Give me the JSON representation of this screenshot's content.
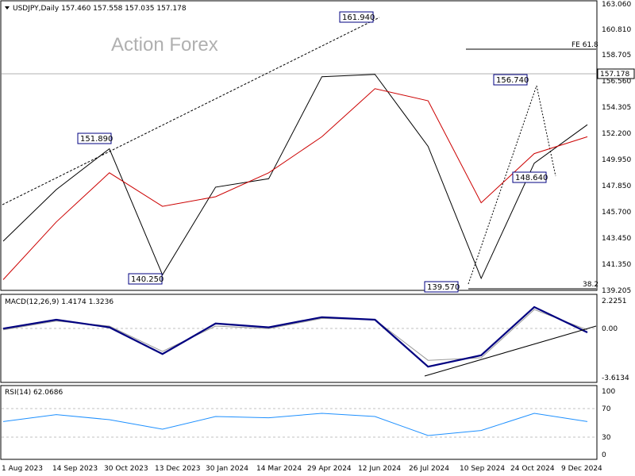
{
  "chart_data": [
    {
      "type": "line",
      "panel": "price",
      "header": "USDJPY,Daily  157.460 157.558 157.035 157.178",
      "watermark": "Action Forex",
      "y_ticks": [
        "163.060",
        "160.810",
        "158.705",
        "156.560",
        "154.305",
        "152.200",
        "149.950",
        "147.850",
        "145.700",
        "143.450",
        "141.350",
        "139.205"
      ],
      "ylim": [
        139.205,
        163.06
      ],
      "x_tick_labels": [
        "1 Aug 2023",
        "14 Sep 2023",
        "30 Oct 2023",
        "13 Dec 2023",
        "30 Jan 2024",
        "14 Mar 2024",
        "29 Apr 2024",
        "12 Jun 2024",
        "26 Jul 2024",
        "10 Sep 2024",
        "24 Oct 2024",
        "9 Dec 2024"
      ],
      "current_price": "157.178",
      "series": [
        {
          "name": "Price",
          "color": "#000000",
          "x": [
            "1 Aug 2023",
            "14 Sep 2023",
            "30 Oct 2023",
            "13 Dec 2023",
            "30 Jan 2024",
            "14 Mar 2024",
            "29 Apr 2024",
            "12 Jun 2024",
            "26 Jul 2024",
            "10 Sep 2024",
            "24 Oct 2024",
            "9 Dec 2024"
          ],
          "values": [
            143.3,
            147.6,
            151.0,
            140.5,
            147.8,
            148.5,
            157.0,
            157.2,
            151.2,
            140.2,
            149.8,
            153.0
          ]
        },
        {
          "name": "MA",
          "color": "#cc0000",
          "x": [
            "1 Aug 2023",
            "14 Sep 2023",
            "30 Oct 2023",
            "13 Dec 2023",
            "30 Jan 2024",
            "14 Mar 2024",
            "29 Apr 2024",
            "12 Jun 2024",
            "26 Jul 2024",
            "10 Sep 2024",
            "24 Oct 2024",
            "9 Dec 2024"
          ],
          "values": [
            140.1,
            144.9,
            149.0,
            146.2,
            147.0,
            149.0,
            152.0,
            156.0,
            155.0,
            146.5,
            150.6,
            152.0
          ]
        }
      ],
      "annotations": [
        {
          "text": "161.940",
          "x": "12 Jun 2024",
          "y": 161.94
        },
        {
          "text": "151.890",
          "x": "14 Sep 2023",
          "y": 151.89
        },
        {
          "text": "140.250",
          "x": "13 Dec 2023",
          "y": 140.25
        },
        {
          "text": "139.570",
          "x": "10 Sep 2024",
          "y": 139.57
        },
        {
          "text": "156.740",
          "x": "24 Oct 2024",
          "y": 156.74
        },
        {
          "text": "148.640",
          "x": "24 Oct 2024",
          "y": 148.64
        },
        {
          "text": "FE 61.8",
          "y": 159.4
        },
        {
          "text": "38.2",
          "y": 139.6
        }
      ]
    },
    {
      "type": "line",
      "panel": "macd",
      "header": "MACD(12,26,9) 1.4174 1.3236",
      "y_ticks": [
        "2.2251",
        "0.00",
        "-3.6134"
      ],
      "ylim": [
        -3.6134,
        2.7
      ],
      "series": [
        {
          "name": "MACD",
          "color": "#000080",
          "x": [
            "1 Aug 2023",
            "14 Sep 2023",
            "30 Oct 2023",
            "13 Dec 2023",
            "30 Jan 2024",
            "14 Mar 2024",
            "29 Apr 2024",
            "12 Jun 2024",
            "26 Jul 2024",
            "10 Sep 2024",
            "24 Oct 2024",
            "9 Dec 2024"
          ],
          "values": [
            0.5,
            1.2,
            0.6,
            -1.5,
            0.9,
            0.6,
            1.4,
            1.2,
            -2.5,
            -1.6,
            2.2,
            0.2
          ]
        },
        {
          "name": "Signal",
          "color": "#999999",
          "x": [
            "1 Aug 2023",
            "14 Sep 2023",
            "30 Oct 2023",
            "13 Dec 2023",
            "30 Jan 2024",
            "14 Mar 2024",
            "29 Apr 2024",
            "12 Jun 2024",
            "26 Jul 2024",
            "10 Sep 2024",
            "24 Oct 2024",
            "9 Dec 2024"
          ],
          "values": [
            0.4,
            1.1,
            0.7,
            -1.3,
            0.7,
            0.5,
            1.3,
            1.2,
            -2.0,
            -1.8,
            2.0,
            0.4
          ]
        }
      ]
    },
    {
      "type": "line",
      "panel": "rsi",
      "header": "RSI(14) 62.0686",
      "y_ticks": [
        "100",
        "70",
        "30",
        "0"
      ],
      "ylim": [
        0,
        100
      ],
      "series": [
        {
          "name": "RSI",
          "color": "#1e90ff",
          "x": [
            "1 Aug 2023",
            "14 Sep 2023",
            "30 Oct 2023",
            "13 Dec 2023",
            "30 Jan 2024",
            "14 Mar 2024",
            "29 Apr 2024",
            "12 Jun 2024",
            "26 Jul 2024",
            "10 Sep 2024",
            "24 Oct 2024",
            "9 Dec 2024"
          ],
          "values": [
            52,
            63,
            55,
            40,
            60,
            58,
            65,
            60,
            30,
            38,
            65,
            52
          ]
        }
      ]
    }
  ]
}
